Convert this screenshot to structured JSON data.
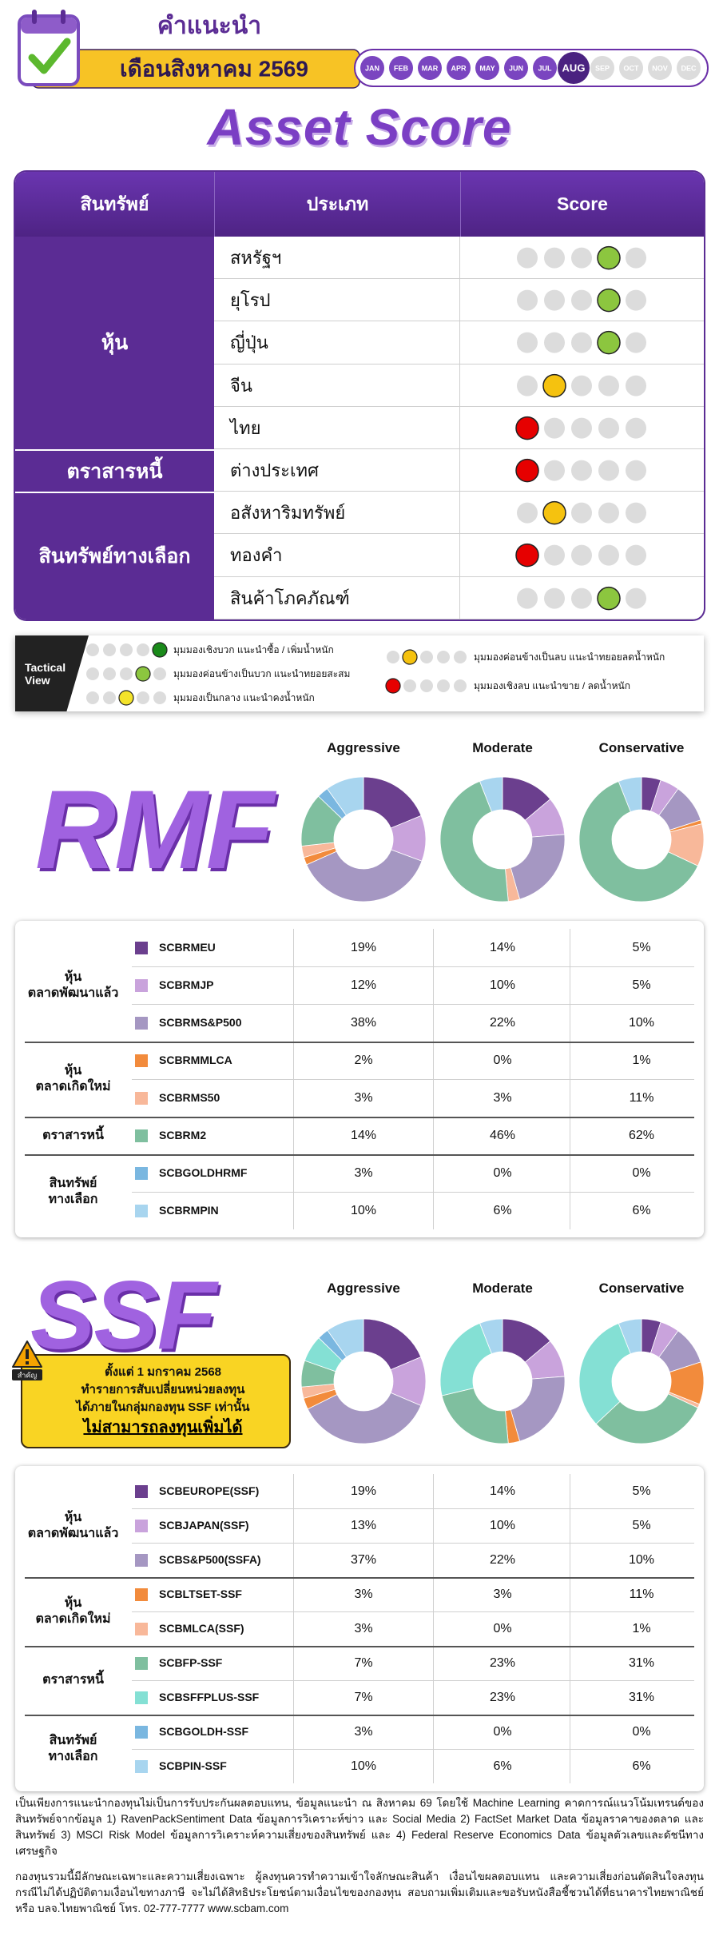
{
  "header": {
    "title": "คำแนะนำ",
    "subtitle": "เดือนสิงหาคม 2569",
    "months": [
      "JAN",
      "FEB",
      "MAR",
      "APR",
      "MAY",
      "JUN",
      "JUL",
      "AUG",
      "SEP",
      "OCT",
      "NOV",
      "DEC"
    ],
    "current_month": "AUG"
  },
  "asset_score": {
    "title": "Asset Score",
    "columns": [
      "สินทรัพย์",
      "ประเภท",
      "Score"
    ],
    "scale": [
      1,
      5
    ],
    "groups": [
      {
        "name": "หุ้น",
        "rows": [
          {
            "type": "สหรัฐฯ",
            "score": 4
          },
          {
            "type": "ยุโรป",
            "score": 4
          },
          {
            "type": "ญี่ปุ่น",
            "score": 4
          },
          {
            "type": "จีน",
            "score": 2
          },
          {
            "type": "ไทย",
            "score": 1
          }
        ]
      },
      {
        "name": "ตราสารหนี้",
        "rows": [
          {
            "type": "ต่างประเทศ",
            "score": 1
          }
        ]
      },
      {
        "name": "สินทรัพย์ทางเลือก",
        "rows": [
          {
            "type": "อสังหาริมทรัพย์",
            "score": 2
          },
          {
            "type": "ทองคำ",
            "score": 1
          },
          {
            "type": "สินค้าโภคภัณฑ์",
            "score": 4
          }
        ]
      }
    ]
  },
  "legend": {
    "title": [
      "Tactical",
      "View"
    ],
    "items": [
      {
        "score": 5,
        "color": "#1a8a1a",
        "label": "มุมมองเชิงบวก แนะนำซื้อ / เพิ่มน้ำหนัก"
      },
      {
        "score": 4,
        "color": "#8cc63f",
        "label": "มุมมองค่อนข้างเป็นบวก แนะนำทยอยสะสม"
      },
      {
        "score": 3,
        "color": "#f4e32a",
        "label": "มุมมองเป็นกลาง แนะนำคงน้ำหนัก"
      },
      {
        "score": 2,
        "color": "#f5c20f",
        "label": "มุมมองค่อนข้างเป็นลบ แนะนำทยอยลดน้ำหนัก"
      },
      {
        "score": 1,
        "color": "#e60000",
        "label": "มุมมองเชิงลบ แนะนำขาย / ลดน้ำหนัก"
      }
    ]
  },
  "rmf": {
    "title": "RMF",
    "columns": [
      "Aggressive",
      "Moderate",
      "Conservative"
    ],
    "groups": [
      {
        "name": [
          "หุ้น",
          "ตลาดพัฒนาแล้ว"
        ],
        "funds": [
          {
            "name": "SCBRMEU",
            "color": "#6b3f8e",
            "values": [
              19,
              14,
              5
            ],
            "value_labels": [
              "19%",
              "14%",
              "5%"
            ]
          },
          {
            "name": "SCBRMJP",
            "color": "#c9a3dc",
            "values": [
              12,
              10,
              5
            ],
            "value_labels": [
              "12%",
              "10%",
              "5%"
            ]
          },
          {
            "name": "SCBRMS&P500",
            "color": "#a597c2",
            "values": [
              38,
              22,
              10
            ],
            "value_labels": [
              "38%",
              "22%",
              "10%"
            ]
          }
        ]
      },
      {
        "name": [
          "หุ้น",
          "ตลาดเกิดใหม่"
        ],
        "funds": [
          {
            "name": "SCBRMMLCA",
            "color": "#f28b3c",
            "values": [
              2,
              0,
              1
            ],
            "value_labels": [
              "2%",
              "0%",
              "1%"
            ]
          },
          {
            "name": "SCBRMS50",
            "color": "#f8b89a",
            "values": [
              3,
              3,
              11
            ],
            "value_labels": [
              "3%",
              "3%",
              "11%"
            ]
          }
        ]
      },
      {
        "name": [
          "ตราสารหนี้"
        ],
        "funds": [
          {
            "name": "SCBRM2",
            "color": "#7fbf9f",
            "values": [
              14,
              46,
              62
            ],
            "value_labels": [
              "14%",
              "46%",
              "62%"
            ]
          }
        ]
      },
      {
        "name": [
          "สินทรัพย์",
          "ทางเลือก"
        ],
        "funds": [
          {
            "name": "SCBGOLDHRMF",
            "color": "#7ab7e0",
            "values": [
              3,
              0,
              0
            ],
            "value_labels": [
              "3%",
              "0%",
              "0%"
            ]
          },
          {
            "name": "SCBRMPIN",
            "color": "#a8d5ef",
            "values": [
              10,
              6,
              6
            ],
            "value_labels": [
              "10%",
              "6%",
              "6%"
            ]
          }
        ]
      }
    ]
  },
  "ssf": {
    "title": "SSF",
    "columns": [
      "Aggressive",
      "Moderate",
      "Conservative"
    ],
    "notice": {
      "icon_label": "สำคัญ",
      "lines": [
        "ตั้งแต่ 1 มกราคม 2568",
        "ทำรายการสับเปลี่ยนหน่วยลงทุน",
        "ได้ภายในกลุ่มกองทุน SSF เท่านั้น"
      ],
      "emphasis": "ไม่สามารถลงทุนเพิ่มได้"
    },
    "groups": [
      {
        "name": [
          "หุ้น",
          "ตลาดพัฒนาแล้ว"
        ],
        "funds": [
          {
            "name": "SCBEUROPE(SSF)",
            "color": "#6b3f8e",
            "values": [
              19,
              14,
              5
            ],
            "value_labels": [
              "19%",
              "14%",
              "5%"
            ]
          },
          {
            "name": "SCBJAPAN(SSF)",
            "color": "#c9a3dc",
            "values": [
              13,
              10,
              5
            ],
            "value_labels": [
              "13%",
              "10%",
              "5%"
            ]
          },
          {
            "name": "SCBS&P500(SSFA)",
            "color": "#a597c2",
            "values": [
              37,
              22,
              10
            ],
            "value_labels": [
              "37%",
              "22%",
              "10%"
            ]
          }
        ]
      },
      {
        "name": [
          "หุ้น",
          "ตลาดเกิดใหม่"
        ],
        "funds": [
          {
            "name": "SCBLTSET-SSF",
            "color": "#f28b3c",
            "values": [
              3,
              3,
              11
            ],
            "value_labels": [
              "3%",
              "3%",
              "11%"
            ]
          },
          {
            "name": "SCBMLCA(SSF)",
            "color": "#f8b89a",
            "values": [
              3,
              0,
              1
            ],
            "value_labels": [
              "3%",
              "0%",
              "1%"
            ]
          }
        ]
      },
      {
        "name": [
          "ตราสารหนี้"
        ],
        "funds": [
          {
            "name": "SCBFP-SSF",
            "color": "#7fbf9f",
            "values": [
              7,
              23,
              31
            ],
            "value_labels": [
              "7%",
              "23%",
              "31%"
            ]
          },
          {
            "name": "SCBSFFPLUS-SSF",
            "color": "#84e0d4",
            "values": [
              7,
              23,
              31
            ],
            "value_labels": [
              "7%",
              "23%",
              "31%"
            ]
          }
        ]
      },
      {
        "name": [
          "สินทรัพย์",
          "ทางเลือก"
        ],
        "funds": [
          {
            "name": "SCBGOLDH-SSF",
            "color": "#7ab7e0",
            "values": [
              3,
              0,
              0
            ],
            "value_labels": [
              "3%",
              "0%",
              "0%"
            ]
          },
          {
            "name": "SCBPIN-SSF",
            "color": "#a8d5ef",
            "values": [
              10,
              6,
              6
            ],
            "value_labels": [
              "10%",
              "6%",
              "6%"
            ]
          }
        ]
      }
    ]
  },
  "footer": {
    "paragraphs": [
      "เป็นเพียงการแนะนำกองทุนไม่เป็นการรับประกันผลตอบแทน, ข้อมูลแนะนำ ณ สิงหาคม 69 โดยใช้ Machine Learning คาดการณ์แนวโน้มเทรนด์ของสินทรัพย์จากข้อมูล 1) RavenPackSentiment Data ข้อมูลการวิเคราะห์ข่าว และ Social Media 2) FactSet Market Data ข้อมูลราคาของตลาด และสินทรัพย์ 3) MSCI Risk Model ข้อมูลการวิเคราะห์ความเสี่ยงของสินทรัพย์ และ 4) Federal Reserve Economics Data ข้อมูลตัวเลขและดัชนีทางเศรษฐกิจ",
      "กองทุนรวมนี้มีลักษณะเฉพาะและความเสี่ยงเฉพาะ ผู้ลงทุนควรทำความเข้าใจลักษณะสินค้า เงื่อนไขผลตอบแทน และความเสี่ยงก่อนตัดสินใจลงทุน กรณีไม่ได้ปฏิบัติตามเงื่อนไขทางภาษี จะไม่ได้สิทธิประโยชน์ตามเงื่อนไขของกองทุน สอบถามเพิ่มเติมและขอรับหนังสือชี้ชวนได้ที่ธนาคารไทยพาณิชย์ หรือ บลจ.ไทยพาณิชย์ โทร. 02-777-7777 www.scbam.com"
    ]
  }
}
